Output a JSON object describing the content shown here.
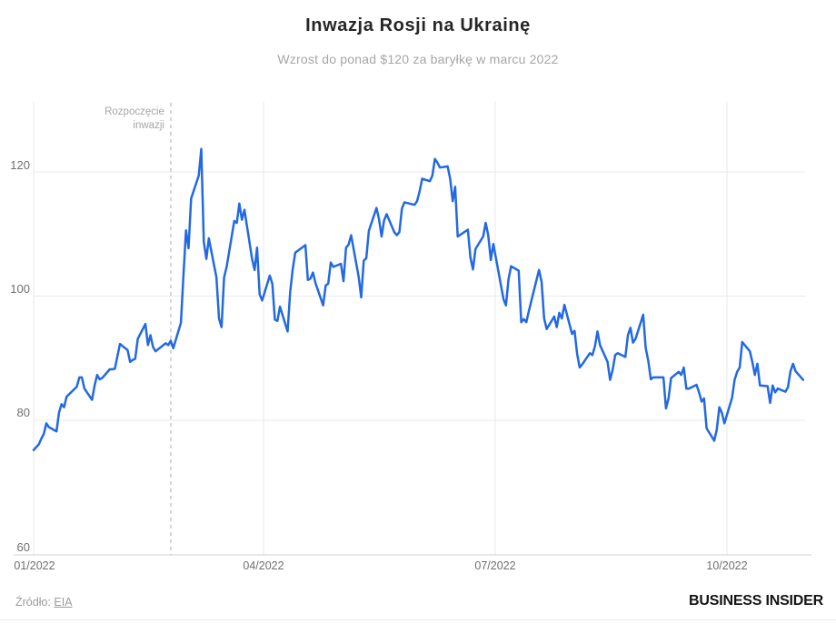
{
  "header": {
    "title": "Inwazja Rosji na Ukrainę",
    "subtitle": "Wzrost do ponad $120 za baryłkę w marcu 2022"
  },
  "annotation": {
    "line1": "Rozpoczęcie",
    "line2": "inwazji",
    "date": "02-24"
  },
  "axes": {
    "y_ticks": [
      "120",
      "100",
      "80",
      "60"
    ],
    "x_ticks": [
      "01/2022",
      "04/2022",
      "07/2022",
      "10/2022"
    ]
  },
  "footer": {
    "source_label": "Źródło:",
    "source_link": "EIA",
    "brand": "BUSINESS INSIDER"
  },
  "colors": {
    "line": "#2269e3",
    "grid": "#e9e9e9",
    "axis_line": "#cfcfcf",
    "dashed": "#c4c4c4",
    "title": "#262626",
    "subtitle": "#a6a6a6",
    "tick": "#6f6f6f",
    "annotation": "#a6a6a6",
    "source": "#9b9b9b",
    "brand": "#141414",
    "divider": "#ececec"
  },
  "chart_data": {
    "type": "line",
    "title": "Inwazja Rosji na Ukrainę",
    "subtitle": "Wzrost do ponad $120 za baryłkę w marcu 2022",
    "x_tick_labels": [
      "01/2022",
      "04/2022",
      "07/2022",
      "10/2022"
    ],
    "y_tick_values": [
      60,
      80,
      100,
      120
    ],
    "ylim": [
      58,
      131
    ],
    "grid": true,
    "legend": false,
    "annotation": {
      "label": "Rozpoczęcie inwazji",
      "date": "02-24"
    },
    "series": [
      {
        "points": [
          [
            "01-01",
            75.2
          ],
          [
            "01-03",
            76.1
          ],
          [
            "01-04",
            77.0
          ],
          [
            "01-05",
            77.8
          ],
          [
            "01-06",
            79.5
          ],
          [
            "01-07",
            78.9
          ],
          [
            "01-10",
            78.2
          ],
          [
            "01-11",
            81.2
          ],
          [
            "01-12",
            82.6
          ],
          [
            "01-13",
            82.1
          ],
          [
            "01-14",
            83.8
          ],
          [
            "01-18",
            85.4
          ],
          [
            "01-19",
            86.9
          ],
          [
            "01-20",
            86.9
          ],
          [
            "01-21",
            85.1
          ],
          [
            "01-24",
            83.3
          ],
          [
            "01-25",
            85.6
          ],
          [
            "01-26",
            87.3
          ],
          [
            "01-27",
            86.6
          ],
          [
            "01-28",
            86.8
          ],
          [
            "01-31",
            88.2
          ],
          [
            "02-01",
            88.2
          ],
          [
            "02-02",
            88.3
          ],
          [
            "02-03",
            90.3
          ],
          [
            "02-04",
            92.3
          ],
          [
            "02-07",
            91.3
          ],
          [
            "02-08",
            89.4
          ],
          [
            "02-09",
            89.7
          ],
          [
            "02-10",
            89.9
          ],
          [
            "02-11",
            93.1
          ],
          [
            "02-14",
            95.5
          ],
          [
            "02-15",
            92.1
          ],
          [
            "02-16",
            93.7
          ],
          [
            "02-17",
            91.8
          ],
          [
            "02-18",
            91.1
          ],
          [
            "02-22",
            92.4
          ],
          [
            "02-23",
            92.1
          ],
          [
            "02-24",
            92.8
          ],
          [
            "02-25",
            91.6
          ],
          [
            "02-28",
            95.7
          ],
          [
            "03-01",
            103.4
          ],
          [
            "03-02",
            110.6
          ],
          [
            "03-03",
            107.7
          ],
          [
            "03-04",
            115.7
          ],
          [
            "03-07",
            119.4
          ],
          [
            "03-08",
            123.7
          ],
          [
            "03-09",
            108.7
          ],
          [
            "03-10",
            106.0
          ],
          [
            "03-11",
            109.3
          ],
          [
            "03-14",
            103.0
          ],
          [
            "03-15",
            96.4
          ],
          [
            "03-16",
            95.0
          ],
          [
            "03-17",
            103.0
          ],
          [
            "03-18",
            104.7
          ],
          [
            "03-21",
            112.1
          ],
          [
            "03-22",
            111.8
          ],
          [
            "03-23",
            114.9
          ],
          [
            "03-24",
            112.3
          ],
          [
            "03-25",
            113.9
          ],
          [
            "03-28",
            106.0
          ],
          [
            "03-29",
            104.2
          ],
          [
            "03-30",
            107.8
          ],
          [
            "03-31",
            100.3
          ],
          [
            "04-01",
            99.3
          ],
          [
            "04-04",
            103.3
          ],
          [
            "04-05",
            102.0
          ],
          [
            "04-06",
            96.2
          ],
          [
            "04-07",
            96.0
          ],
          [
            "04-08",
            98.3
          ],
          [
            "04-11",
            94.3
          ],
          [
            "04-12",
            100.6
          ],
          [
            "04-13",
            104.3
          ],
          [
            "04-14",
            107.0
          ],
          [
            "04-18",
            108.2
          ],
          [
            "04-19",
            102.6
          ],
          [
            "04-20",
            102.8
          ],
          [
            "04-21",
            103.8
          ],
          [
            "04-22",
            102.1
          ],
          [
            "04-25",
            98.5
          ],
          [
            "04-26",
            101.7
          ],
          [
            "04-27",
            102.0
          ],
          [
            "04-28",
            105.4
          ],
          [
            "04-29",
            104.7
          ],
          [
            "05-02",
            105.2
          ],
          [
            "05-03",
            102.4
          ],
          [
            "05-04",
            107.8
          ],
          [
            "05-05",
            108.3
          ],
          [
            "05-06",
            109.8
          ],
          [
            "05-09",
            103.1
          ],
          [
            "05-10",
            99.8
          ],
          [
            "05-11",
            105.7
          ],
          [
            "05-12",
            106.1
          ],
          [
            "05-13",
            110.5
          ],
          [
            "05-16",
            114.2
          ],
          [
            "05-17",
            112.4
          ],
          [
            "05-18",
            109.6
          ],
          [
            "05-19",
            112.2
          ],
          [
            "05-20",
            113.2
          ],
          [
            "05-23",
            110.3
          ],
          [
            "05-24",
            109.8
          ],
          [
            "05-25",
            110.3
          ],
          [
            "05-26",
            114.1
          ],
          [
            "05-27",
            115.1
          ],
          [
            "05-31",
            114.7
          ],
          [
            "06-01",
            115.3
          ],
          [
            "06-02",
            116.9
          ],
          [
            "06-03",
            118.9
          ],
          [
            "06-06",
            118.5
          ],
          [
            "06-07",
            119.4
          ],
          [
            "06-08",
            122.1
          ],
          [
            "06-09",
            121.5
          ],
          [
            "06-10",
            120.7
          ],
          [
            "06-13",
            120.9
          ],
          [
            "06-14",
            118.9
          ],
          [
            "06-15",
            115.3
          ],
          [
            "06-16",
            117.6
          ],
          [
            "06-17",
            109.6
          ],
          [
            "06-21",
            110.7
          ],
          [
            "06-22",
            106.2
          ],
          [
            "06-23",
            104.3
          ],
          [
            "06-24",
            107.6
          ],
          [
            "06-27",
            109.6
          ],
          [
            "06-28",
            111.8
          ],
          [
            "06-29",
            109.8
          ],
          [
            "06-30",
            105.8
          ],
          [
            "07-01",
            108.4
          ],
          [
            "07-05",
            99.5
          ],
          [
            "07-06",
            98.5
          ],
          [
            "07-07",
            102.7
          ],
          [
            "07-08",
            104.8
          ],
          [
            "07-11",
            104.1
          ],
          [
            "07-12",
            95.8
          ],
          [
            "07-13",
            96.3
          ],
          [
            "07-14",
            95.8
          ],
          [
            "07-15",
            97.6
          ],
          [
            "07-18",
            102.6
          ],
          [
            "07-19",
            104.2
          ],
          [
            "07-20",
            102.3
          ],
          [
            "07-21",
            96.4
          ],
          [
            "07-22",
            94.7
          ],
          [
            "07-25",
            96.7
          ],
          [
            "07-26",
            95.0
          ],
          [
            "07-27",
            97.3
          ],
          [
            "07-28",
            96.4
          ],
          [
            "07-29",
            98.6
          ],
          [
            "08-01",
            93.9
          ],
          [
            "08-02",
            94.4
          ],
          [
            "08-03",
            90.7
          ],
          [
            "08-04",
            88.5
          ],
          [
            "08-05",
            89.0
          ],
          [
            "08-08",
            90.8
          ],
          [
            "08-09",
            90.5
          ],
          [
            "08-10",
            91.9
          ],
          [
            "08-11",
            94.3
          ],
          [
            "08-12",
            92.1
          ],
          [
            "08-15",
            89.4
          ],
          [
            "08-16",
            86.5
          ],
          [
            "08-17",
            88.1
          ],
          [
            "08-18",
            90.5
          ],
          [
            "08-19",
            90.8
          ],
          [
            "08-22",
            90.2
          ],
          [
            "08-23",
            93.7
          ],
          [
            "08-24",
            94.9
          ],
          [
            "08-25",
            92.5
          ],
          [
            "08-26",
            93.1
          ],
          [
            "08-29",
            97.0
          ],
          [
            "08-30",
            91.6
          ],
          [
            "08-31",
            89.6
          ],
          [
            "09-01",
            86.6
          ],
          [
            "09-02",
            86.9
          ],
          [
            "09-06",
            86.9
          ],
          [
            "09-07",
            81.9
          ],
          [
            "09-08",
            83.5
          ],
          [
            "09-09",
            86.8
          ],
          [
            "09-12",
            87.8
          ],
          [
            "09-13",
            87.3
          ],
          [
            "09-14",
            88.5
          ],
          [
            "09-15",
            85.1
          ],
          [
            "09-16",
            85.1
          ],
          [
            "09-19",
            85.7
          ],
          [
            "09-20",
            84.5
          ],
          [
            "09-21",
            83.0
          ],
          [
            "09-22",
            83.5
          ],
          [
            "09-23",
            78.7
          ],
          [
            "09-26",
            76.7
          ],
          [
            "09-27",
            78.5
          ],
          [
            "09-28",
            82.1
          ],
          [
            "09-29",
            81.2
          ],
          [
            "09-30",
            79.5
          ],
          [
            "10-03",
            83.6
          ],
          [
            "10-04",
            86.5
          ],
          [
            "10-05",
            87.8
          ],
          [
            "10-06",
            88.5
          ],
          [
            "10-07",
            92.6
          ],
          [
            "10-10",
            91.1
          ],
          [
            "10-11",
            89.4
          ],
          [
            "10-12",
            87.3
          ],
          [
            "10-13",
            89.1
          ],
          [
            "10-14",
            85.6
          ],
          [
            "10-17",
            85.5
          ],
          [
            "10-18",
            82.8
          ],
          [
            "10-19",
            85.6
          ],
          [
            "10-20",
            84.5
          ],
          [
            "10-21",
            85.1
          ],
          [
            "10-24",
            84.6
          ],
          [
            "10-25",
            85.3
          ],
          [
            "10-26",
            87.9
          ],
          [
            "10-27",
            89.1
          ],
          [
            "10-28",
            87.9
          ],
          [
            "10-31",
            86.5
          ]
        ]
      }
    ]
  }
}
